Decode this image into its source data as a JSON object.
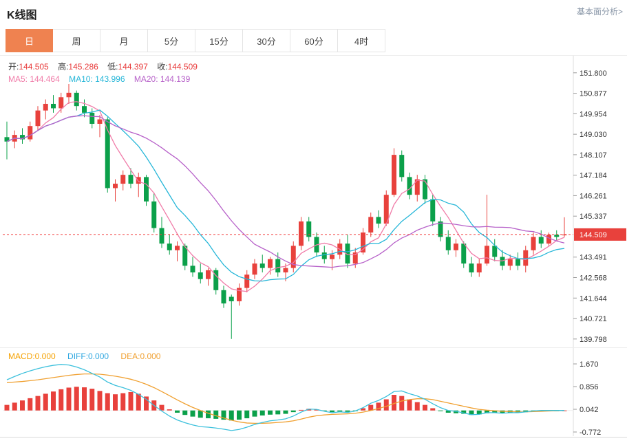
{
  "header": {
    "title": "K线图",
    "link_label": "基本面分析>"
  },
  "tabs": [
    {
      "label": "日",
      "active": true
    },
    {
      "label": "周",
      "active": false
    },
    {
      "label": "月",
      "active": false
    },
    {
      "label": "5分",
      "active": false
    },
    {
      "label": "15分",
      "active": false
    },
    {
      "label": "30分",
      "active": false
    },
    {
      "label": "60分",
      "active": false
    },
    {
      "label": "4时",
      "active": false
    }
  ],
  "legend": {
    "open_label": "开:",
    "open": "144.505",
    "high_label": "高:",
    "high": "145.286",
    "low_label": "低:",
    "low": "144.397",
    "close_label": "收:",
    "close": "144.509"
  },
  "ma_legend": {
    "ma5_label": "MA5:",
    "ma5": "144.464",
    "ma10_label": "MA10:",
    "ma10": "143.996",
    "ma20_label": "MA20:",
    "ma20": "144.139"
  },
  "macd_legend": {
    "macd_label": "MACD:",
    "macd": "0.000",
    "diff_label": "DIFF:",
    "diff": "0.000",
    "dea_label": "DEA:",
    "dea": "0.000"
  },
  "colors": {
    "up": "#e8413c",
    "down": "#0ba04a",
    "accent_tab": "#ef8250",
    "price_line": "#f23c3c",
    "price_badge": "#e8413c",
    "value_red": "#e83a3a",
    "ma5": "#f07ba8",
    "ma10": "#25b6d8",
    "ma20": "#b761c9",
    "diff_line": "#3bc0dc",
    "dea_line": "#f0a030",
    "macd_label": "#f5a100",
    "diff_label": "#2fa7e0",
    "dea_label": "#f0a030",
    "axis_text": "#333333",
    "axis_line": "#dddddd"
  },
  "chart_data": [
    {
      "type": "candlestick",
      "title": "日K线",
      "y_ticks": [
        "151.800",
        "150.877",
        "149.954",
        "149.030",
        "148.107",
        "147.184",
        "146.261",
        "145.337",
        "143.491",
        "142.568",
        "141.644",
        "140.721",
        "139.798"
      ],
      "ylim": [
        139.42,
        152.57
      ],
      "grid": false,
      "current_price": 144.509,
      "current_price_label": "144.509",
      "ohlc_latest": {
        "open": 144.505,
        "high": 145.286,
        "low": 144.397,
        "close": 144.509
      },
      "ma_values": {
        "MA5": 144.464,
        "MA10": 143.996,
        "MA20": 144.139
      },
      "ma_periods": [
        5,
        10,
        20
      ],
      "candles": [
        [
          148.9,
          149.6,
          147.9,
          148.7
        ],
        [
          148.7,
          149.2,
          148.4,
          149.0
        ],
        [
          149.0,
          149.3,
          148.6,
          148.8
        ],
        [
          148.8,
          149.6,
          148.7,
          149.4
        ],
        [
          149.4,
          150.3,
          149.2,
          150.1
        ],
        [
          150.1,
          150.6,
          149.7,
          150.4
        ],
        [
          150.4,
          150.8,
          150.0,
          150.2
        ],
        [
          150.2,
          150.9,
          150.0,
          150.7
        ],
        [
          150.7,
          151.3,
          150.4,
          150.9
        ],
        [
          150.9,
          151.0,
          150.1,
          150.3
        ],
        [
          150.3,
          150.6,
          149.8,
          150.0
        ],
        [
          150.0,
          150.2,
          149.3,
          149.5
        ],
        [
          149.5,
          149.9,
          148.9,
          149.7
        ],
        [
          149.7,
          149.8,
          146.4,
          146.6
        ],
        [
          146.6,
          147.0,
          146.0,
          146.8
        ],
        [
          146.8,
          147.4,
          146.5,
          147.2
        ],
        [
          147.2,
          147.5,
          146.6,
          146.8
        ],
        [
          146.8,
          147.3,
          146.2,
          147.1
        ],
        [
          147.1,
          147.2,
          145.8,
          146.0
        ],
        [
          146.0,
          146.4,
          144.6,
          144.8
        ],
        [
          144.8,
          145.3,
          143.9,
          144.1
        ],
        [
          144.1,
          144.5,
          143.6,
          143.8
        ],
        [
          143.8,
          144.2,
          143.3,
          144.0
        ],
        [
          144.0,
          144.1,
          142.9,
          143.1
        ],
        [
          143.1,
          143.5,
          142.6,
          142.8
        ],
        [
          142.8,
          143.2,
          142.3,
          142.5
        ],
        [
          142.5,
          143.0,
          142.2,
          142.9
        ],
        [
          142.9,
          143.0,
          141.8,
          142.0
        ],
        [
          142.0,
          142.2,
          141.2,
          141.4
        ],
        [
          141.7,
          141.8,
          139.8,
          141.5
        ],
        [
          141.5,
          142.3,
          141.3,
          142.1
        ],
        [
          142.1,
          142.9,
          141.9,
          142.7
        ],
        [
          142.7,
          143.4,
          142.5,
          143.2
        ],
        [
          143.2,
          143.6,
          142.8,
          143.0
        ],
        [
          143.0,
          143.5,
          142.7,
          143.4
        ],
        [
          143.4,
          143.7,
          142.6,
          142.8
        ],
        [
          142.8,
          143.2,
          142.4,
          143.0
        ],
        [
          143.0,
          144.2,
          142.8,
          144.0
        ],
        [
          144.0,
          145.3,
          143.8,
          145.1
        ],
        [
          145.1,
          145.3,
          144.2,
          144.4
        ],
        [
          144.4,
          144.6,
          143.5,
          143.7
        ],
        [
          143.7,
          144.0,
          143.2,
          143.4
        ],
        [
          143.4,
          143.8,
          142.9,
          143.6
        ],
        [
          143.6,
          144.3,
          143.4,
          144.1
        ],
        [
          144.1,
          144.5,
          143.0,
          143.2
        ],
        [
          143.2,
          143.9,
          143.0,
          143.7
        ],
        [
          143.7,
          144.8,
          143.6,
          144.6
        ],
        [
          144.6,
          145.5,
          144.4,
          145.3
        ],
        [
          145.3,
          145.6,
          144.8,
          145.0
        ],
        [
          145.0,
          146.5,
          144.9,
          146.3
        ],
        [
          146.3,
          148.4,
          146.2,
          148.1
        ],
        [
          148.1,
          148.3,
          146.9,
          147.1
        ],
        [
          147.1,
          147.3,
          146.1,
          146.3
        ],
        [
          146.3,
          147.2,
          146.0,
          147.0
        ],
        [
          147.0,
          147.2,
          145.9,
          146.1
        ],
        [
          146.1,
          146.3,
          144.9,
          145.1
        ],
        [
          145.1,
          145.3,
          144.2,
          144.4
        ],
        [
          144.4,
          144.7,
          143.6,
          143.8
        ],
        [
          143.8,
          144.3,
          143.5,
          144.1
        ],
        [
          144.1,
          144.2,
          143.0,
          143.2
        ],
        [
          143.2,
          143.5,
          142.6,
          142.8
        ],
        [
          142.8,
          143.4,
          142.6,
          143.2
        ],
        [
          143.2,
          146.3,
          143.1,
          144.0
        ],
        [
          144.0,
          144.3,
          143.3,
          143.5
        ],
        [
          143.5,
          143.8,
          142.9,
          143.1
        ],
        [
          143.1,
          143.6,
          142.9,
          143.4
        ],
        [
          143.4,
          143.7,
          142.9,
          143.1
        ],
        [
          143.1,
          144.0,
          142.8,
          143.8
        ],
        [
          143.8,
          144.6,
          143.6,
          144.4
        ],
        [
          144.4,
          144.7,
          143.9,
          144.1
        ],
        [
          144.1,
          144.6,
          144.0,
          144.5
        ],
        [
          144.5,
          144.7,
          144.2,
          144.4
        ],
        [
          144.505,
          145.286,
          144.397,
          144.509
        ]
      ]
    },
    {
      "type": "bar",
      "title": "MACD",
      "y_ticks": [
        "1.670",
        "0.856",
        "0.042",
        "-0.772"
      ],
      "ylim": [
        -0.92,
        2.238
      ],
      "macd": 0.0,
      "diff": 0.0,
      "dea": 0.0,
      "hist": [
        0.2,
        0.28,
        0.36,
        0.44,
        0.52,
        0.6,
        0.68,
        0.76,
        0.82,
        0.85,
        0.83,
        0.78,
        0.7,
        0.62,
        0.58,
        0.62,
        0.66,
        0.6,
        0.5,
        0.36,
        0.2,
        0.04,
        -0.08,
        -0.16,
        -0.22,
        -0.26,
        -0.28,
        -0.3,
        -0.33,
        -0.36,
        -0.33,
        -0.28,
        -0.22,
        -0.18,
        -0.15,
        -0.14,
        -0.12,
        -0.06,
        0.02,
        0.06,
        0.04,
        -0.02,
        -0.06,
        -0.04,
        -0.05,
        -0.02,
        0.08,
        0.2,
        0.28,
        0.4,
        0.56,
        0.52,
        0.4,
        0.3,
        0.2,
        0.08,
        -0.02,
        -0.08,
        -0.1,
        -0.12,
        -0.16,
        -0.14,
        -0.1,
        -0.08,
        -0.1,
        -0.08,
        -0.08,
        -0.06,
        -0.04,
        -0.03,
        -0.02,
        -0.01,
        0.0
      ],
      "diff_series": [
        1.1,
        1.22,
        1.33,
        1.42,
        1.5,
        1.57,
        1.62,
        1.65,
        1.63,
        1.56,
        1.46,
        1.33,
        1.2,
        1.02,
        0.9,
        0.82,
        0.72,
        0.58,
        0.4,
        0.18,
        -0.02,
        -0.2,
        -0.34,
        -0.44,
        -0.52,
        -0.58,
        -0.6,
        -0.63,
        -0.67,
        -0.72,
        -0.68,
        -0.6,
        -0.5,
        -0.43,
        -0.37,
        -0.34,
        -0.3,
        -0.2,
        -0.06,
        0.05,
        0.04,
        -0.03,
        -0.08,
        -0.05,
        -0.07,
        -0.02,
        0.1,
        0.26,
        0.36,
        0.5,
        0.68,
        0.7,
        0.6,
        0.52,
        0.4,
        0.24,
        0.1,
        0.0,
        -0.03,
        -0.09,
        -0.15,
        -0.14,
        -0.08,
        -0.08,
        -0.1,
        -0.08,
        -0.08,
        -0.05,
        -0.02,
        0.0,
        0.0,
        0.0,
        0.0
      ],
      "dea_series": [
        1.0,
        1.02,
        1.04,
        1.07,
        1.1,
        1.14,
        1.18,
        1.22,
        1.26,
        1.29,
        1.31,
        1.31,
        1.3,
        1.27,
        1.23,
        1.18,
        1.12,
        1.04,
        0.94,
        0.82,
        0.68,
        0.53,
        0.38,
        0.24,
        0.11,
        0.0,
        -0.1,
        -0.19,
        -0.27,
        -0.35,
        -0.41,
        -0.45,
        -0.46,
        -0.46,
        -0.45,
        -0.43,
        -0.41,
        -0.37,
        -0.31,
        -0.24,
        -0.19,
        -0.16,
        -0.14,
        -0.13,
        -0.12,
        -0.1,
        -0.06,
        0.0,
        0.07,
        0.15,
        0.25,
        0.34,
        0.39,
        0.42,
        0.42,
        0.39,
        0.33,
        0.27,
        0.21,
        0.15,
        0.09,
        0.04,
        0.01,
        -0.01,
        -0.03,
        -0.04,
        -0.05,
        -0.05,
        -0.04,
        -0.03,
        -0.02,
        -0.01,
        0.0
      ]
    }
  ]
}
